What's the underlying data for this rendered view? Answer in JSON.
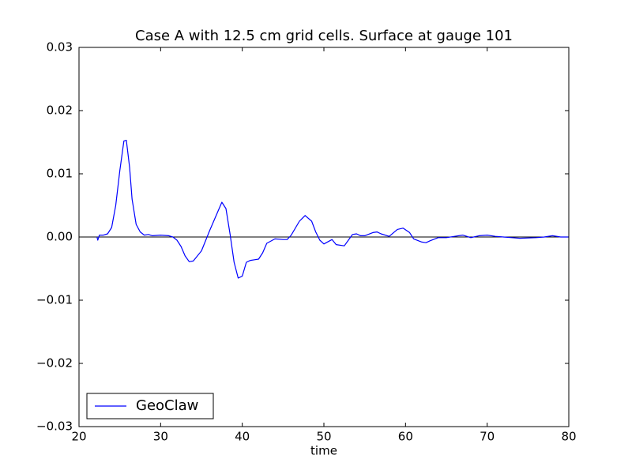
{
  "chart_data": {
    "type": "line",
    "title": "Case A with 12.5 cm grid cells.  Surface at gauge 101",
    "xlabel": "time",
    "x": [
      22.2,
      22.3,
      22.5,
      23,
      23.5,
      24,
      24.5,
      25,
      25.5,
      25.8,
      26.2,
      26.5,
      27,
      27.5,
      28,
      28.5,
      29,
      30,
      31,
      31.5,
      32,
      32.5,
      33,
      33.5,
      34,
      35,
      36,
      37,
      37.5,
      38,
      38.5,
      39,
      39.5,
      40,
      40.5,
      41,
      41.5,
      42,
      42.5,
      43,
      44,
      45,
      45.5,
      46,
      47,
      47.7,
      48.5,
      49,
      49.5,
      50,
      51,
      51.5,
      52.5,
      53,
      53.5,
      54,
      54.5,
      55,
      56,
      56.5,
      57,
      58,
      59,
      59.7,
      60.5,
      61,
      62,
      62.5,
      63,
      64,
      65,
      66,
      67,
      68,
      69,
      70,
      71,
      72,
      73,
      74,
      76,
      77,
      78,
      79,
      80
    ],
    "series": [
      {
        "name": "GeoClaw",
        "color": "#0000ff",
        "values": [
          0,
          -0.0005,
          0.0003,
          0.0003,
          0.0005,
          0.0015,
          0.005,
          0.0105,
          0.0152,
          0.0153,
          0.011,
          0.006,
          0.002,
          0.0008,
          0.0003,
          0.0004,
          0.0002,
          0.0003,
          0.0002,
          0,
          -0.0005,
          -0.0015,
          -0.003,
          -0.0039,
          -0.0038,
          -0.0022,
          0.001,
          0.004,
          0.0055,
          0.0045,
          0.0005,
          -0.004,
          -0.0065,
          -0.0062,
          -0.004,
          -0.0037,
          -0.0036,
          -0.0035,
          -0.0025,
          -0.001,
          -0.0003,
          -0.0004,
          -0.0004,
          0.0003,
          0.0025,
          0.0034,
          0.0025,
          0.0008,
          -0.0005,
          -0.0011,
          -0.0004,
          -0.0012,
          -0.0014,
          -0.0005,
          0.0004,
          0.0005,
          0.0002,
          0.0002,
          0.0007,
          0.0008,
          0.0005,
          0.0001,
          0.0012,
          0.0014,
          0.0007,
          -0.0003,
          -0.0008,
          -0.0009,
          -0.0006,
          -0.0001,
          -0.0001,
          0.0001,
          0.0003,
          -0.0001,
          0.0002,
          0.0003,
          0.0001,
          0,
          -0.0001,
          -0.0002,
          -0.0001,
          0,
          0.0002,
          0,
          0
        ]
      }
    ],
    "hlines": [
      0
    ],
    "xlim": [
      20,
      80
    ],
    "ylim": [
      -0.03,
      0.03
    ],
    "xticks": [
      20,
      30,
      40,
      50,
      60,
      70,
      80
    ],
    "yticks": [
      {
        "value": -0.03,
        "label": "−0.03"
      },
      {
        "value": -0.02,
        "label": "−0.02"
      },
      {
        "value": -0.01,
        "label": "−0.01"
      },
      {
        "value": 0,
        "label": "0.00"
      },
      {
        "value": 0.01,
        "label": "0.01"
      },
      {
        "value": 0.02,
        "label": "0.02"
      },
      {
        "value": 0.03,
        "label": "0.03"
      }
    ],
    "legend": "lower left"
  }
}
